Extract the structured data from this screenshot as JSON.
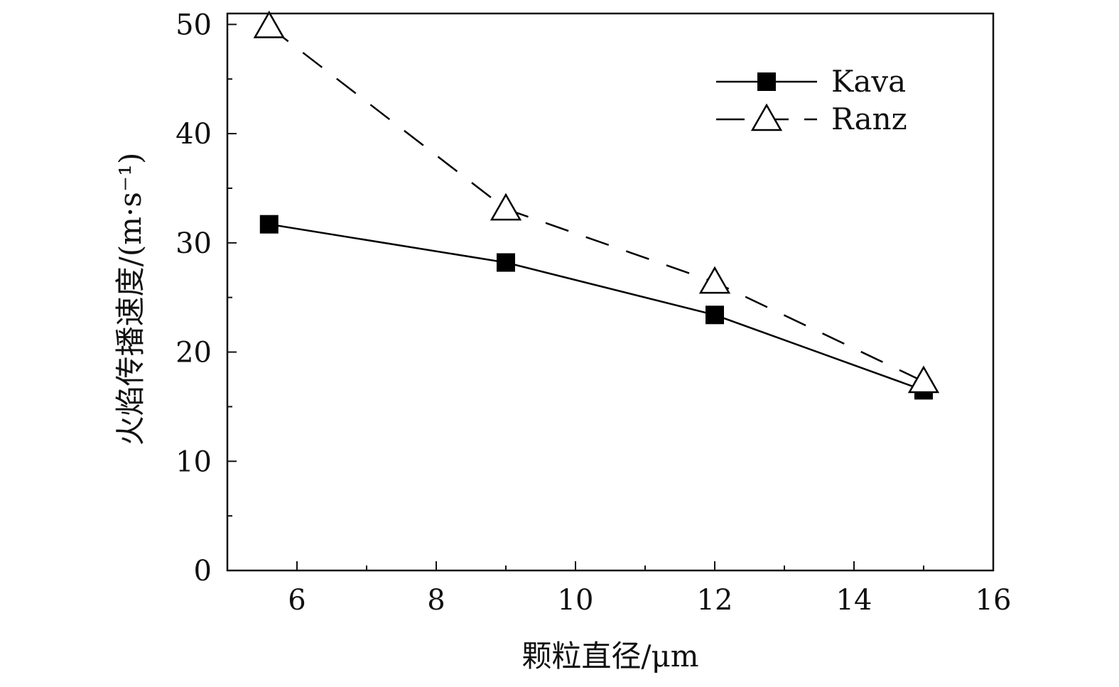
{
  "chart_data": {
    "type": "line",
    "title": "",
    "xlabel": "颗粒直径/μm",
    "ylabel": "火焰传播速度/(m·s⁻¹)",
    "xlim": [
      5,
      16
    ],
    "ylim": [
      0,
      51
    ],
    "xticks": [
      6,
      8,
      10,
      12,
      14,
      16
    ],
    "xtick_labels": [
      "6",
      "8",
      "10",
      "12",
      "14",
      "16"
    ],
    "yticks": [
      0,
      10,
      20,
      30,
      40,
      50
    ],
    "ytick_labels": [
      "0",
      "10",
      "20",
      "30",
      "40",
      "50"
    ],
    "x_minor_step": 1,
    "y_minor_step": 5,
    "grid": false,
    "legend_position": "top-right",
    "series": [
      {
        "name": "Kava",
        "marker": "filled-square",
        "line_style": "solid",
        "color": "#000000",
        "x": [
          5.6,
          9,
          12,
          15
        ],
        "y": [
          31.7,
          28.2,
          23.4,
          16.5
        ]
      },
      {
        "name": "Ranz",
        "marker": "open-triangle",
        "line_style": "dashed",
        "color": "#000000",
        "x": [
          5.6,
          9,
          12,
          15
        ],
        "y": [
          49.8,
          33.1,
          26.4,
          17.3
        ]
      }
    ]
  }
}
